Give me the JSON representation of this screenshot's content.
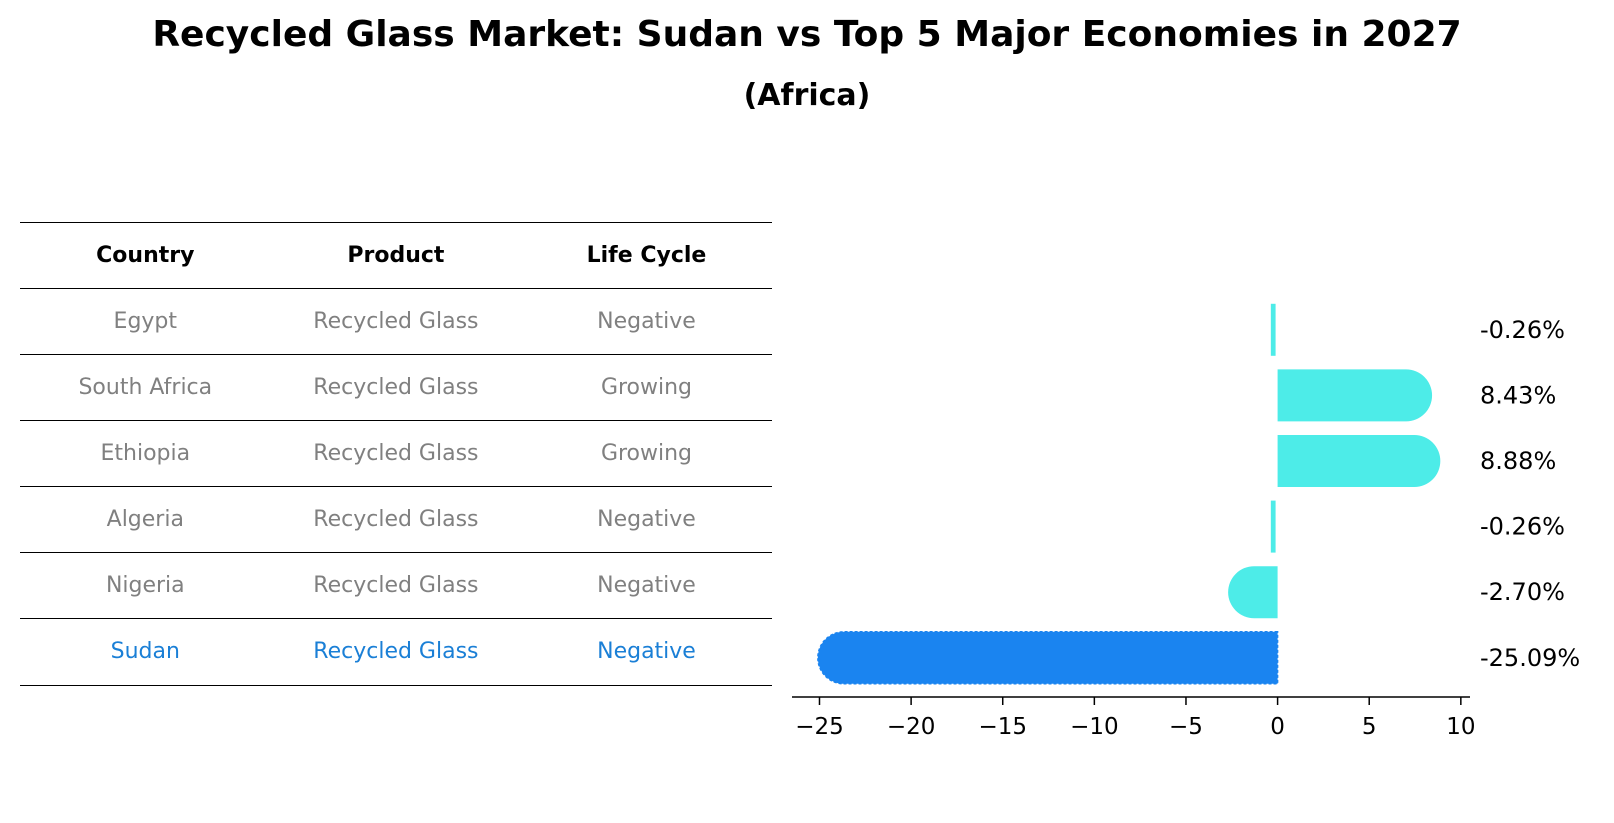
{
  "title": "Recycled Glass Market: Sudan vs Top 5 Major Economies in 2027",
  "subtitle": "(Africa)",
  "table": {
    "headers": [
      "Country",
      "Product",
      "Life Cycle"
    ],
    "rows": [
      [
        "Egypt",
        "Recycled Glass",
        "Negative"
      ],
      [
        "South Africa",
        "Recycled Glass",
        "Growing"
      ],
      [
        "Ethiopia",
        "Recycled Glass",
        "Growing"
      ],
      [
        "Algeria",
        "Recycled Glass",
        "Negative"
      ],
      [
        "Nigeria",
        "Recycled Glass",
        "Negative"
      ],
      [
        "Sudan",
        "Recycled Glass",
        "Negative"
      ]
    ]
  },
  "colors": {
    "highlight": "#1a7fd6",
    "bar": "#4dece8",
    "highlight_bar": "#1a84f0"
  },
  "chart_data": {
    "type": "bar",
    "orientation": "horizontal",
    "categories": [
      "Egypt",
      "South Africa",
      "Ethiopia",
      "Algeria",
      "Nigeria",
      "Sudan"
    ],
    "values": [
      -0.26,
      8.43,
      8.88,
      -0.26,
      -2.7,
      -25.09
    ],
    "value_labels": [
      "-0.26%",
      "8.43%",
      "8.88%",
      "-0.26%",
      "-2.70%",
      "-25.09%"
    ],
    "highlight": "Sudan",
    "xlim": [
      -26.5,
      10.5
    ],
    "xticks": [
      -25,
      -20,
      -15,
      -10,
      -5,
      0,
      5,
      10
    ],
    "xtick_labels": [
      "−25",
      "−20",
      "−15",
      "−10",
      "−5",
      "0",
      "5",
      "10"
    ],
    "xlabel": "",
    "ylabel": ""
  }
}
